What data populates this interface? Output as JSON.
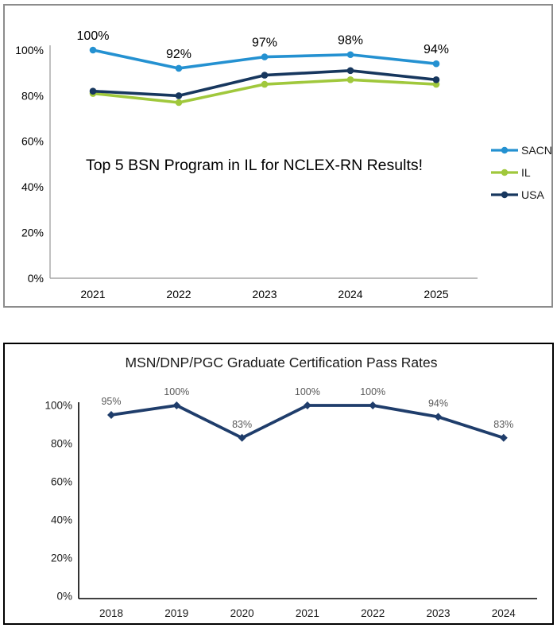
{
  "chart_data": [
    {
      "type": "line",
      "title": "Top 5 BSN Program in IL for NCLEX-RN Results!",
      "categories": [
        "2021",
        "2022",
        "2023",
        "2024",
        "2025"
      ],
      "y_ticks": [
        "0%",
        "20%",
        "40%",
        "60%",
        "80%",
        "100%"
      ],
      "ylim": [
        0,
        100
      ],
      "grid": false,
      "legend_position": "right",
      "series": [
        {
          "name": "SACN",
          "color": "#2491D1",
          "marker": "circle",
          "values": [
            100,
            92,
            97,
            98,
            94
          ],
          "point_labels": [
            "100%",
            "92%",
            "97%",
            "98%",
            "94%"
          ]
        },
        {
          "name": "IL",
          "color": "#A0C83C",
          "marker": "circle",
          "values": [
            81,
            77,
            85,
            87,
            85
          ],
          "point_labels": []
        },
        {
          "name": "USA",
          "color": "#17375E",
          "marker": "circle",
          "values": [
            82,
            80,
            89,
            91,
            87
          ],
          "point_labels": []
        }
      ]
    },
    {
      "type": "line",
      "title": "MSN/DNP/PGC Graduate Certification Pass Rates",
      "categories": [
        "2018",
        "2019",
        "2020",
        "2021",
        "2022",
        "2023",
        "2024"
      ],
      "y_ticks": [
        "0%",
        "20%",
        "40%",
        "60%",
        "80%",
        "100%"
      ],
      "ylim": [
        0,
        100
      ],
      "grid": false,
      "legend_position": "none",
      "series": [
        {
          "name": "Pass Rate",
          "color": "#1F3D6B",
          "marker": "diamond",
          "values": [
            95,
            100,
            83,
            100,
            100,
            94,
            83
          ],
          "point_labels": [
            "95%",
            "100%",
            "83%",
            "100%",
            "100%",
            "94%",
            "83%"
          ]
        }
      ]
    }
  ]
}
